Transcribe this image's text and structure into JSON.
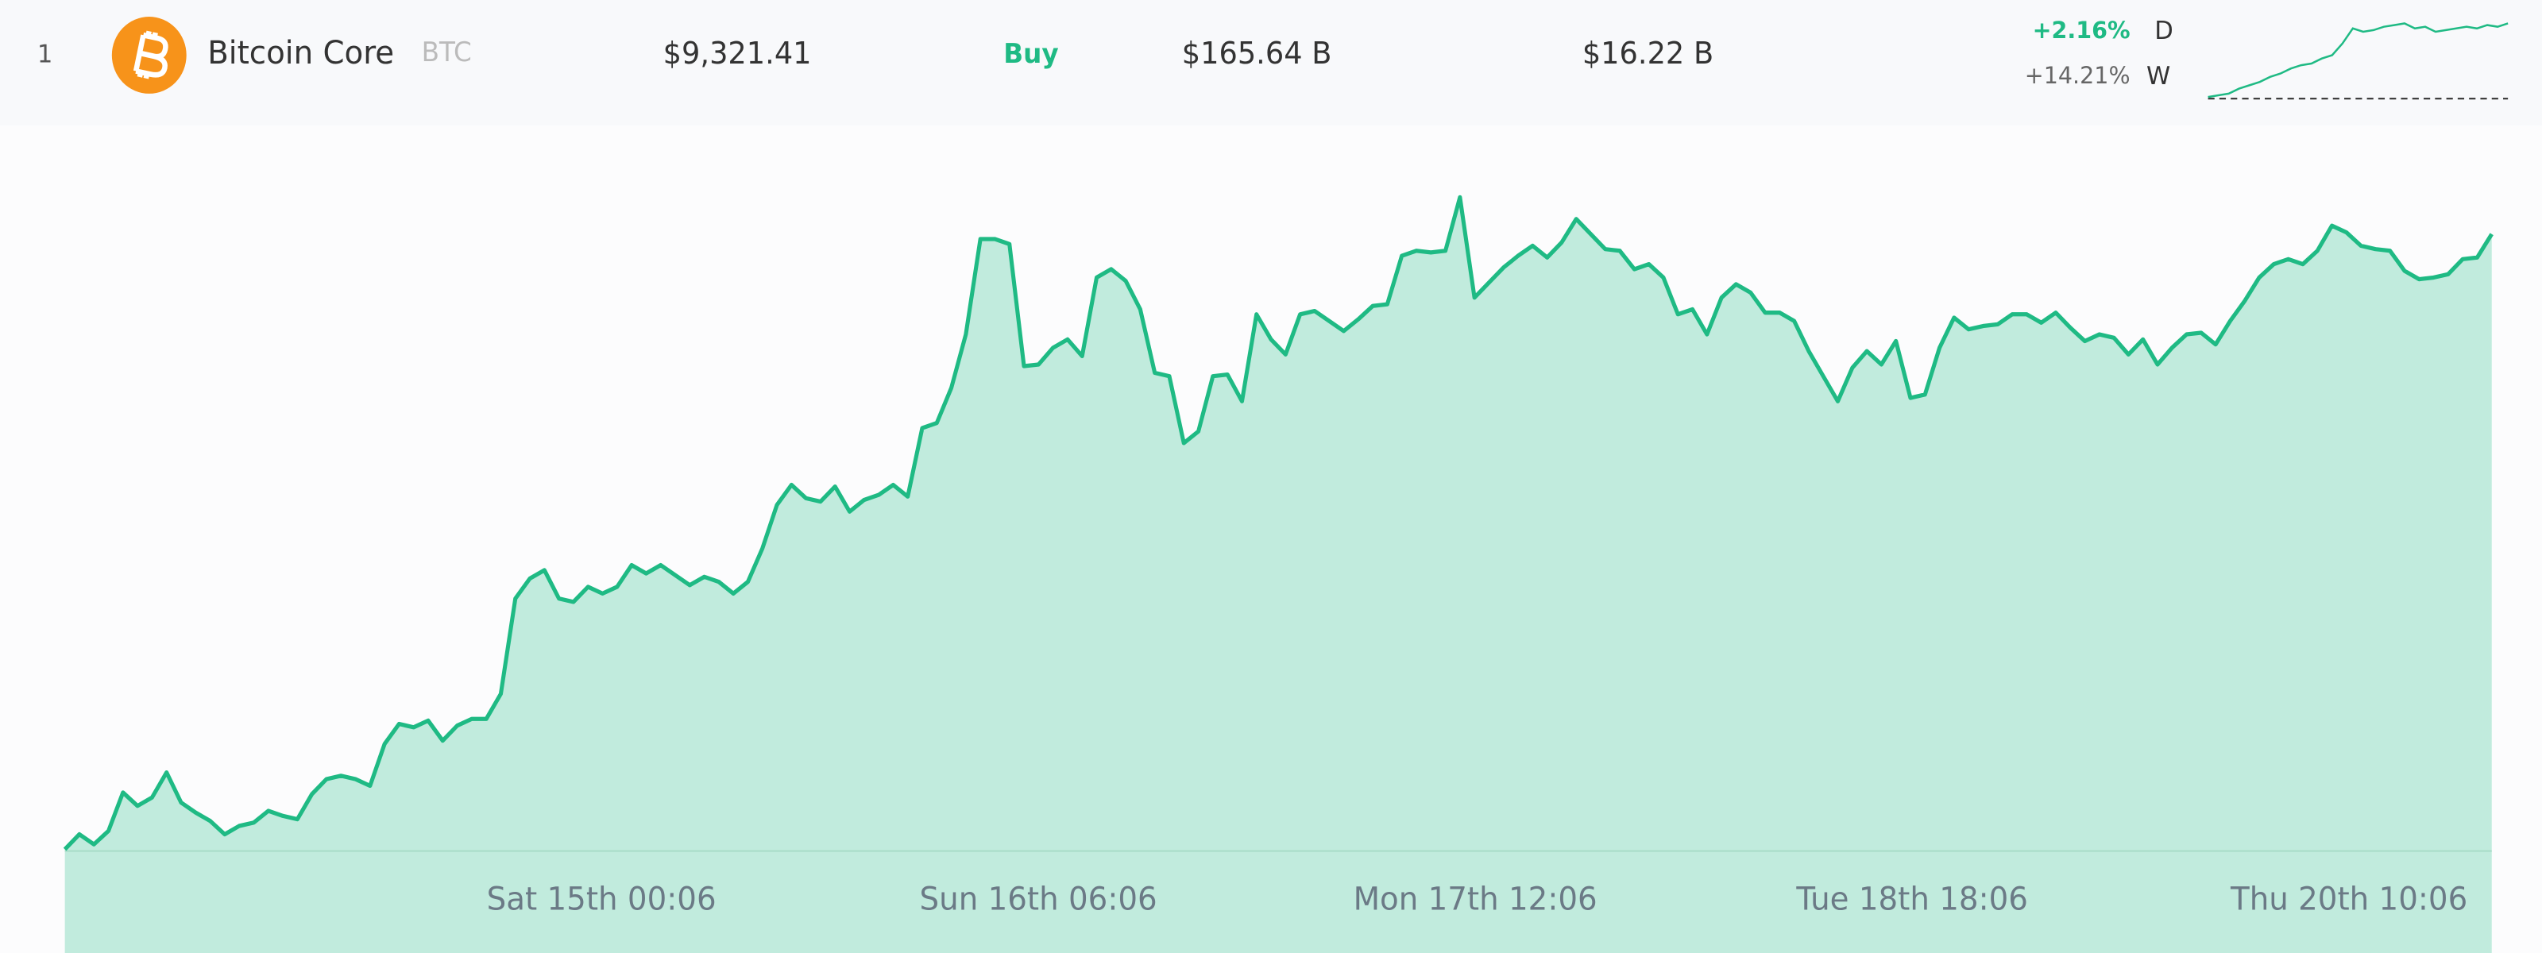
{
  "row": {
    "rank": "1",
    "name": "Bitcoin Core",
    "symbol": "BTC",
    "price": "$9,321.41",
    "action": "Buy",
    "market_cap": "$165.64 B",
    "volume": "$16.22 B",
    "change_day": "+2.16%",
    "change_day_label": "D",
    "change_week": "+14.21%",
    "change_week_label": "W"
  },
  "chart_data": [
    {
      "type": "area",
      "color": "#1fba84",
      "fill": "#c1ebdd",
      "xtick_labels": [
        "Sat 15th 00:06",
        "Sun 16th 06:06",
        "Mon 17th 12:06",
        "Tue 18th 18:06",
        "Thu 20th 10:06"
      ],
      "ylim": [
        0,
        100
      ],
      "values": [
        0.25,
        2.5,
        1,
        3,
        8.75,
        6.75,
        8,
        11.75,
        7.25,
        5.75,
        4.5,
        2.5,
        3.75,
        4.25,
        6,
        5.25,
        4.75,
        8.5,
        10.75,
        11.25,
        10.75,
        9.75,
        16,
        19,
        18.5,
        19.5,
        16.5,
        18.75,
        19.75,
        19.75,
        23.5,
        37.75,
        40.75,
        42,
        37.75,
        37.25,
        39.5,
        38.5,
        39.5,
        42.75,
        41.5,
        42.75,
        41.25,
        39.75,
        41,
        40.25,
        38.5,
        40.25,
        45.25,
        51.75,
        54.75,
        52.75,
        52.25,
        54.5,
        50.75,
        52.5,
        53.25,
        54.75,
        53,
        63.25,
        64,
        69.25,
        77.25,
        91.5,
        91.5,
        90.75,
        72.5,
        72.75,
        75.25,
        76.5,
        74,
        85.75,
        87,
        85.25,
        81,
        71.5,
        71,
        61,
        62.75,
        71,
        71.25,
        67.25,
        80.25,
        76.5,
        74.25,
        80.25,
        80.75,
        79.25,
        77.75,
        79.5,
        81.5,
        81.75,
        89,
        89.75,
        89.5,
        89.75,
        97.75,
        82.75,
        85,
        87.25,
        89,
        90.5,
        88.75,
        91,
        94.5,
        92.25,
        90,
        89.75,
        87,
        87.75,
        85.75,
        80.25,
        81,
        77.25,
        82.75,
        84.75,
        83.5,
        80.5,
        80.5,
        79.25,
        74.75,
        71,
        67.25,
        72.25,
        74.75,
        72.75,
        76.25,
        67.75,
        68.25,
        75.25,
        79.75,
        78,
        78.5,
        78.75,
        80.25,
        80.25,
        79,
        80.5,
        78.25,
        76.25,
        77.25,
        76.75,
        74.25,
        76.5,
        72.75,
        75.25,
        77.25,
        77.5,
        75.75,
        79.25,
        82.25,
        85.75,
        87.75,
        88.5,
        87.75,
        89.75,
        93.5,
        92.5,
        90.5,
        90,
        89.75,
        86.75,
        85.5,
        85.75,
        86.25,
        88.5,
        88.75,
        92.25
      ]
    },
    {
      "type": "sparkline",
      "color": "#1fba84",
      "ylim": [
        0,
        50
      ],
      "values": [
        1,
        2,
        3,
        6,
        8,
        10,
        13,
        15,
        18,
        20,
        21,
        24,
        26,
        33,
        42,
        40,
        41,
        43,
        44,
        45,
        42,
        43,
        40,
        41,
        42,
        43,
        42,
        44,
        43,
        45
      ]
    }
  ]
}
